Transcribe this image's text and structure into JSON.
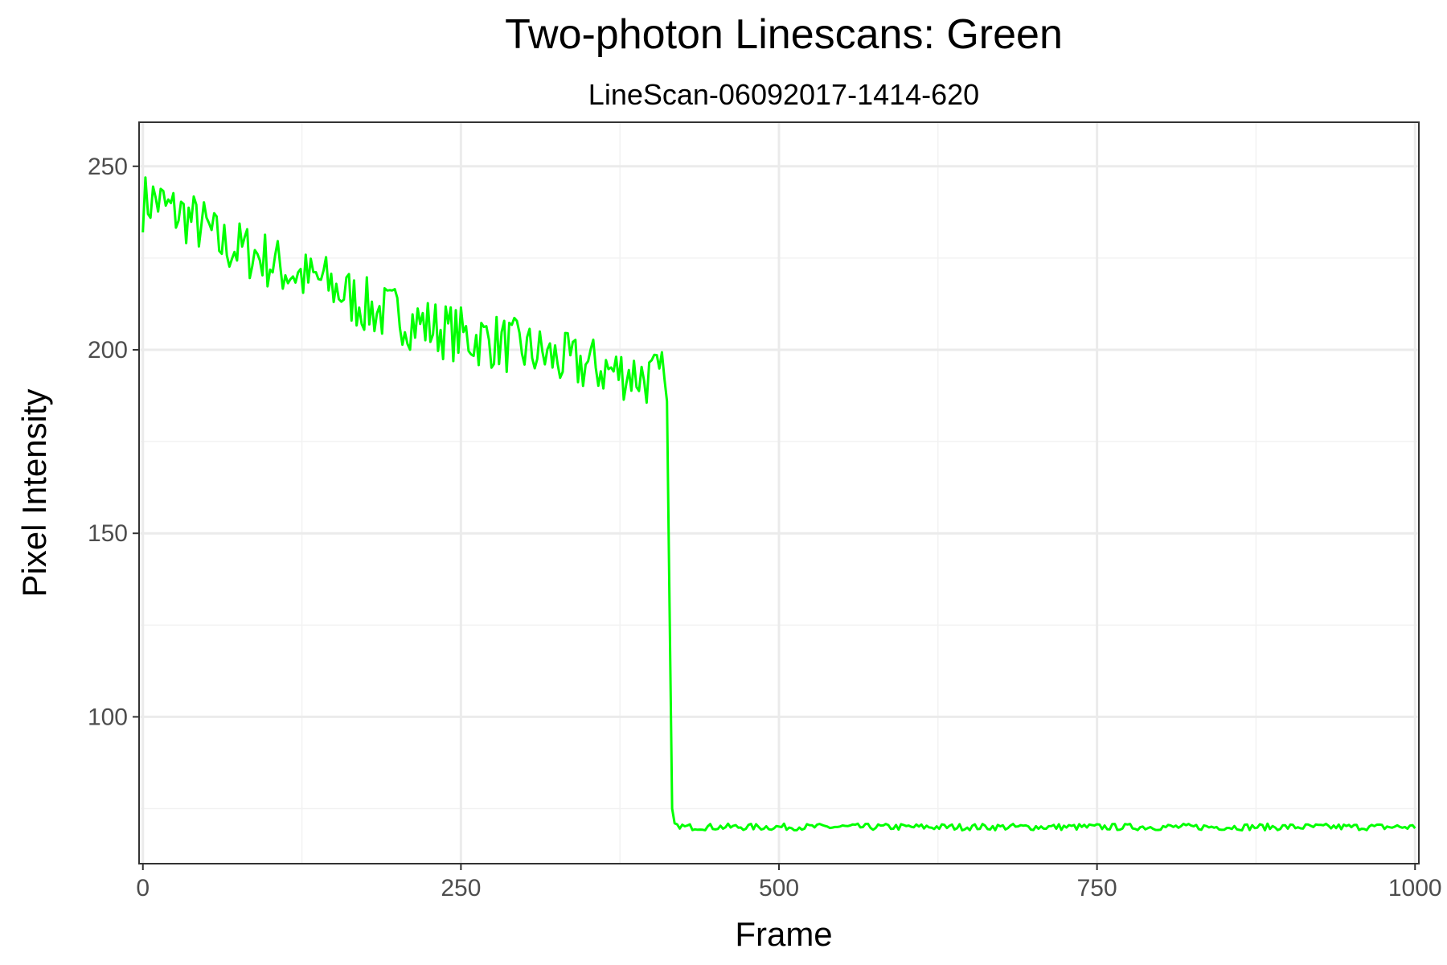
{
  "chart_data": {
    "type": "line",
    "title": "Two-photon Linescans: Green",
    "subtitle": "LineScan-06092017-1414-620",
    "xlabel": "Frame",
    "ylabel": "Pixel Intensity",
    "xlim": [
      0,
      1000
    ],
    "ylim": [
      60,
      262
    ],
    "x_ticks": [
      0,
      250,
      500,
      750,
      1000
    ],
    "y_ticks": [
      100,
      150,
      200,
      250
    ],
    "grid": true,
    "legend": "none",
    "line_color": "#00ff00",
    "series": [
      {
        "x": [
          0,
          10,
          20,
          30,
          40,
          50,
          60,
          70,
          80,
          90,
          100,
          110,
          120,
          130,
          140,
          150,
          160,
          170,
          180,
          190,
          200,
          210,
          220,
          230,
          240,
          250,
          260,
          270,
          280,
          290,
          300,
          310,
          320,
          330,
          340,
          350,
          360,
          370,
          380,
          390,
          400,
          410,
          412,
          414,
          416,
          418,
          425,
          450,
          500,
          550,
          600,
          625,
          630,
          650,
          700,
          750,
          800,
          850,
          900,
          950,
          1000
        ],
        "values": [
          240,
          241,
          238,
          237,
          235,
          233,
          229,
          228,
          227,
          226,
          224,
          222,
          221,
          219,
          219,
          217,
          215,
          213,
          211,
          210,
          210,
          208,
          207,
          206,
          205,
          204,
          203,
          203,
          202,
          201,
          200,
          199,
          198,
          197,
          196,
          196,
          195,
          194,
          194,
          193,
          192,
          192,
          186,
          130,
          75,
          71,
          70,
          70,
          70,
          70,
          70,
          70,
          70,
          70,
          70,
          70,
          70,
          70,
          70,
          70,
          70
        ]
      }
    ]
  }
}
